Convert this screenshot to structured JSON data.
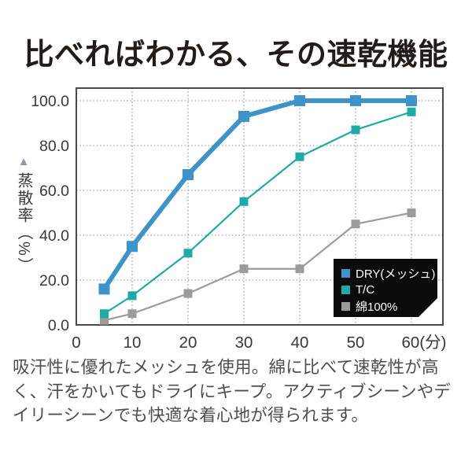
{
  "title": "比べればわかる、その速乾機能",
  "description": "吸汗性に優れたメッシュを使用。綿に比べて速乾性が高く、汗をかいてもドライにキープ。アクティブシーンやデイリーシーンでも快適な着心地が得られます。",
  "chart_data": {
    "type": "line",
    "x": [
      5,
      10,
      20,
      30,
      40,
      50,
      60
    ],
    "series": [
      {
        "name": "DRY(メッシュ)",
        "color": "#3e93c9",
        "values": [
          16,
          35,
          67,
          93,
          100,
          100,
          100
        ],
        "line_width": 6,
        "marker_size": 14
      },
      {
        "name": "T/C",
        "color": "#1faaa6",
        "values": [
          5,
          13,
          32,
          55,
          75,
          87,
          95
        ],
        "line_width": 2.2,
        "marker_size": 11
      },
      {
        "name": "綿100%",
        "color": "#9b9b9b",
        "values": [
          2,
          5,
          14,
          25,
          25,
          45,
          50
        ],
        "line_width": 2.2,
        "marker_size": 11
      }
    ],
    "ylabel": "蒸散率（%）",
    "ylabel_marker": "▲",
    "ylim": [
      0,
      100
    ],
    "xlim": [
      0,
      65.6
    ],
    "grid": "dotted",
    "legend_position": "bottom-right",
    "legend_bg": "#0b0b0b",
    "y_ticks": [
      {
        "label": "100.0",
        "value": 100
      },
      {
        "label": "80.0",
        "value": 80
      },
      {
        "label": "60.0",
        "value": 60
      },
      {
        "label": "40.0",
        "value": 40
      },
      {
        "label": "20.0",
        "value": 20
      },
      {
        "label": "0.0",
        "value": 0
      }
    ],
    "x_ticks": [
      {
        "label": "0",
        "value": 0
      },
      {
        "label": "10",
        "value": 10
      },
      {
        "label": "20",
        "value": 20
      },
      {
        "label": "30",
        "value": 30
      },
      {
        "label": "40",
        "value": 40
      },
      {
        "label": "50",
        "value": 50
      },
      {
        "label": "60(分)",
        "value": 60
      }
    ]
  }
}
